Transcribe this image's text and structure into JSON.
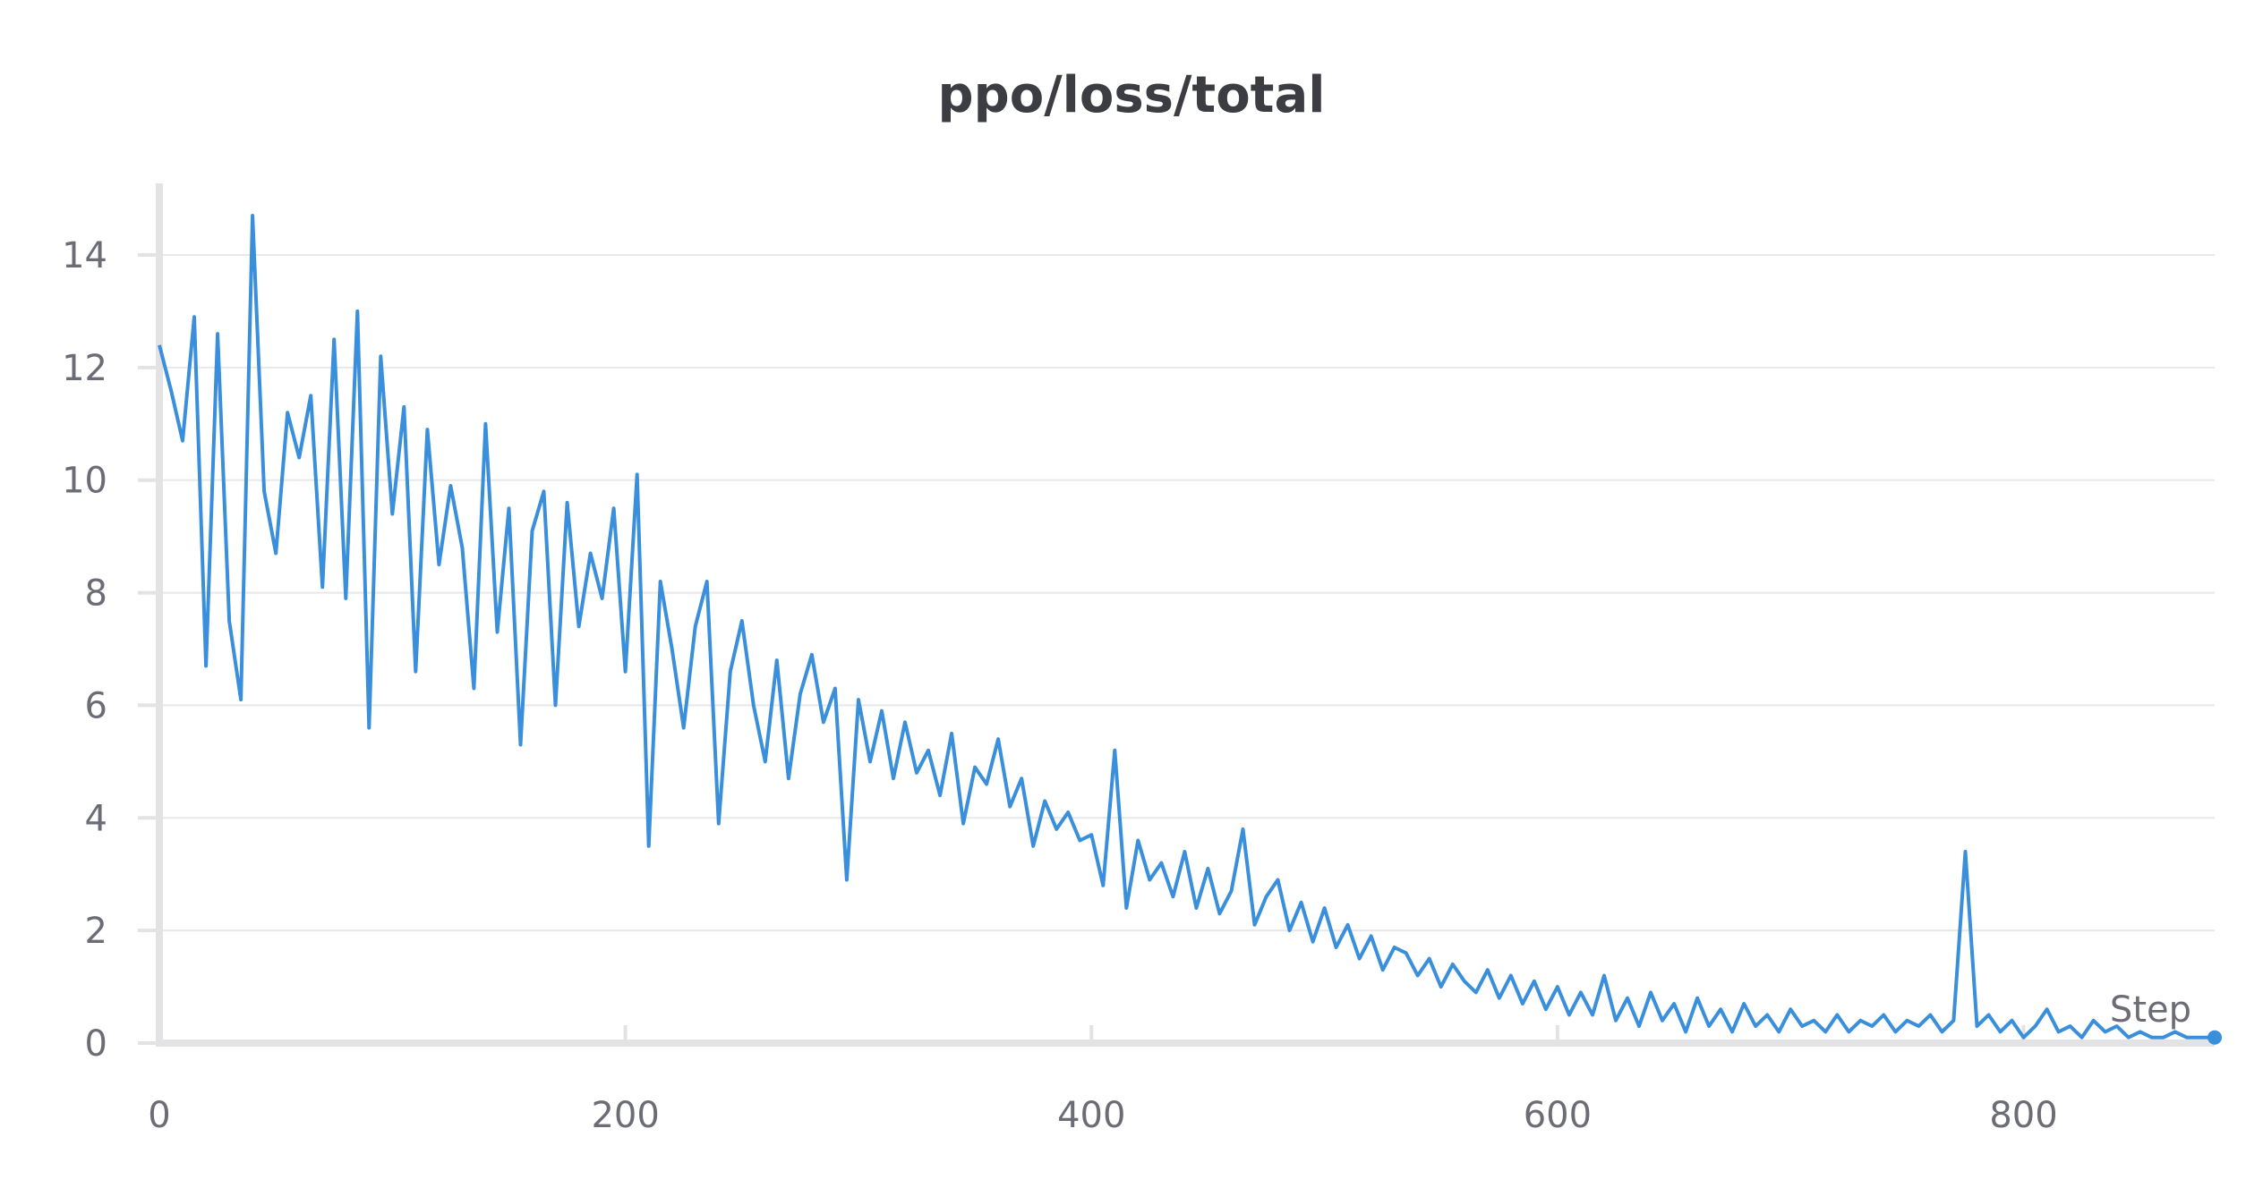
{
  "chart_data": {
    "type": "line",
    "title": "ppo/loss/total",
    "xlabel": "Step",
    "ylabel": "",
    "xlim": [
      0,
      882
    ],
    "ylim": [
      0,
      15
    ],
    "xticks": [
      0,
      200,
      400,
      600,
      800
    ],
    "yticks": [
      0,
      2,
      4,
      6,
      8,
      10,
      12,
      14
    ],
    "grid": true,
    "legend": "none",
    "line_color": "#3a8fdc",
    "series": [
      {
        "x": [
          0,
          5,
          10,
          15,
          20,
          25,
          30,
          35,
          40,
          45,
          50,
          55,
          60,
          65,
          70,
          75,
          80,
          85,
          90,
          95,
          100,
          105,
          110,
          115,
          120,
          125,
          130,
          135,
          140,
          145,
          150,
          155,
          160,
          165,
          170,
          175,
          180,
          185,
          190,
          195,
          200,
          205,
          210,
          215,
          220,
          225,
          230,
          235,
          240,
          245,
          250,
          255,
          260,
          265,
          270,
          275,
          280,
          285,
          290,
          295,
          300,
          305,
          310,
          315,
          320,
          325,
          330,
          335,
          340,
          345,
          350,
          355,
          360,
          365,
          370,
          375,
          380,
          385,
          390,
          395,
          400,
          405,
          410,
          415,
          420,
          425,
          430,
          435,
          440,
          445,
          450,
          455,
          460,
          465,
          470,
          475,
          480,
          485,
          490,
          495,
          500,
          505,
          510,
          515,
          520,
          525,
          530,
          535,
          540,
          545,
          550,
          555,
          560,
          565,
          570,
          575,
          580,
          585,
          590,
          595,
          600,
          605,
          610,
          615,
          620,
          625,
          630,
          635,
          640,
          645,
          650,
          655,
          660,
          665,
          670,
          675,
          680,
          685,
          690,
          695,
          700,
          705,
          710,
          715,
          720,
          725,
          730,
          735,
          740,
          745,
          750,
          755,
          760,
          765,
          770,
          775,
          780,
          785,
          790,
          795,
          800,
          805,
          810,
          815,
          820,
          825,
          830,
          835,
          840,
          845,
          850,
          855,
          860,
          865,
          870,
          875,
          880,
          882
        ],
        "values": [
          12.4,
          11.6,
          10.7,
          12.9,
          6.7,
          12.6,
          7.5,
          6.1,
          14.7,
          9.8,
          8.7,
          11.2,
          10.4,
          11.5,
          8.1,
          12.5,
          7.9,
          13.0,
          5.6,
          12.2,
          9.4,
          11.3,
          6.6,
          10.9,
          8.5,
          9.9,
          8.8,
          6.3,
          11.0,
          7.3,
          9.5,
          5.3,
          9.1,
          9.8,
          6.0,
          9.6,
          7.4,
          8.7,
          7.9,
          9.5,
          6.6,
          10.1,
          3.5,
          8.2,
          7.0,
          5.6,
          7.4,
          8.2,
          3.9,
          6.6,
          7.5,
          6.0,
          5.0,
          6.8,
          4.7,
          6.2,
          6.9,
          5.7,
          6.3,
          2.9,
          6.1,
          5.0,
          5.9,
          4.7,
          5.7,
          4.8,
          5.2,
          4.4,
          5.5,
          3.9,
          4.9,
          4.6,
          5.4,
          4.2,
          4.7,
          3.5,
          4.3,
          3.8,
          4.1,
          3.6,
          3.7,
          2.8,
          5.2,
          2.4,
          3.6,
          2.9,
          3.2,
          2.6,
          3.4,
          2.4,
          3.1,
          2.3,
          2.7,
          3.8,
          2.1,
          2.6,
          2.9,
          2.0,
          2.5,
          1.8,
          2.4,
          1.7,
          2.1,
          1.5,
          1.9,
          1.3,
          1.7,
          1.6,
          1.2,
          1.5,
          1.0,
          1.4,
          1.1,
          0.9,
          1.3,
          0.8,
          1.2,
          0.7,
          1.1,
          0.6,
          1.0,
          0.5,
          0.9,
          0.5,
          1.2,
          0.4,
          0.8,
          0.3,
          0.9,
          0.4,
          0.7,
          0.2,
          0.8,
          0.3,
          0.6,
          0.2,
          0.7,
          0.3,
          0.5,
          0.2,
          0.6,
          0.3,
          0.4,
          0.2,
          0.5,
          0.2,
          0.4,
          0.3,
          0.5,
          0.2,
          0.4,
          0.3,
          0.5,
          0.2,
          0.4,
          3.4,
          0.3,
          0.5,
          0.2,
          0.4,
          0.1,
          0.3,
          0.6,
          0.2,
          0.3,
          0.1,
          0.4,
          0.2,
          0.3,
          0.1,
          0.2,
          0.1,
          0.1,
          0.2,
          0.1,
          0.1,
          0.1,
          0.1
        ]
      }
    ]
  }
}
